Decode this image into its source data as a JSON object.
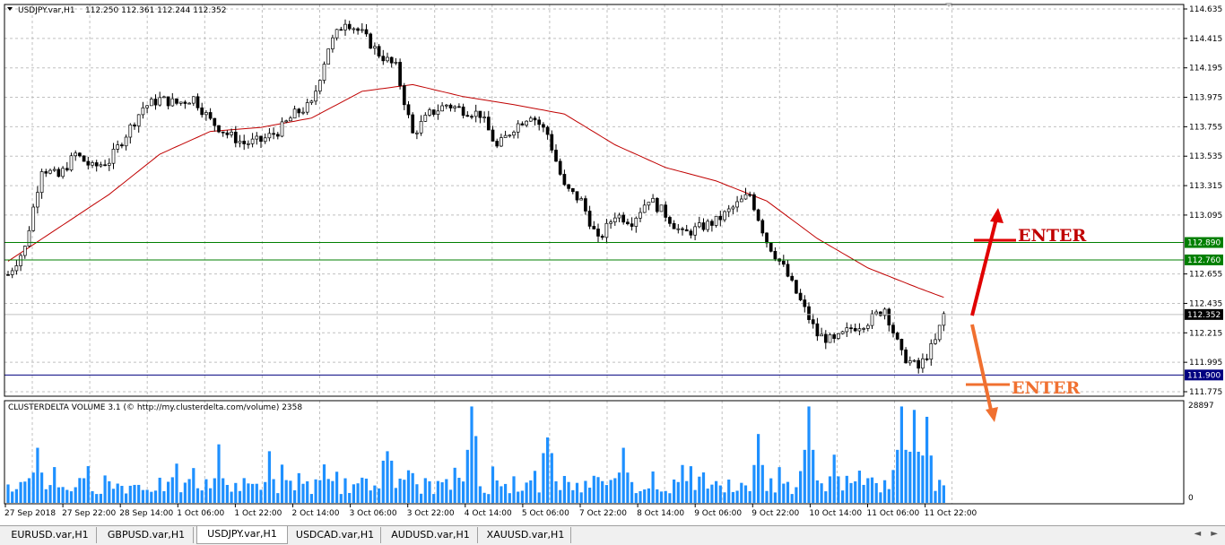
{
  "header": {
    "symbol_title": "USDJPY.var,H1",
    "ohlc": "112.250 112.361 112.244 112.352"
  },
  "indicator": {
    "title": "CLUSTERDELTA VOLUME 3.1 (© http://my.clusterdelta.com/volume) 2358",
    "max_label": "28897",
    "min_label": "0"
  },
  "price_axis": {
    "ticks": [
      "114.635",
      "114.415",
      "114.195",
      "113.975",
      "113.755",
      "113.535",
      "113.315",
      "113.095",
      "112.655",
      "112.435",
      "112.215",
      "111.995",
      "111.775"
    ]
  },
  "levels": {
    "upper": {
      "value": 112.89,
      "label": "112.890",
      "color": "#007f00"
    },
    "middle": {
      "value": 112.76,
      "label": "112.760",
      "color": "#007f00"
    },
    "current": {
      "value": 112.352,
      "label": "112.352",
      "color": "#000000"
    },
    "lower": {
      "value": 111.9,
      "label": "111.900",
      "color": "#000080"
    }
  },
  "annotations": {
    "buy_label": "ENTER",
    "buy_color": "#e00000",
    "sell_label": "ENTER",
    "sell_color": "#f07030",
    "label_color_buy": "#c00000",
    "label_color_sell": "#f07030"
  },
  "time_axis": {
    "labels": [
      "27 Sep 2018",
      "27 Sep 22:00",
      "28 Sep 14:00",
      "1 Oct 06:00",
      "1 Oct 22:00",
      "2 Oct 14:00",
      "3 Oct 06:00",
      "3 Oct 22:00",
      "4 Oct 14:00",
      "5 Oct 06:00",
      "7 Oct 22:00",
      "8 Oct 14:00",
      "9 Oct 06:00",
      "9 Oct 22:00",
      "10 Oct 14:00",
      "11 Oct 06:00",
      "11 Oct 22:00"
    ]
  },
  "tabs": [
    {
      "label": "EURUSD.var,H1",
      "active": false
    },
    {
      "label": "GBPUSD.var,H1",
      "active": false
    },
    {
      "label": "USDJPY.var,H1",
      "active": true
    },
    {
      "label": "USDCAD.var,H1",
      "active": false
    },
    {
      "label": "AUDUSD.var,H1",
      "active": false
    },
    {
      "label": "XAUUSD.var,H1",
      "active": false
    }
  ],
  "colors": {
    "candle": "#000000",
    "ma": "#c00000",
    "volume": "#1e90ff",
    "grid": "#c0c0c0"
  },
  "chart_data": {
    "type": "candlestick",
    "symbol": "USDJPY",
    "timeframe": "H1",
    "ylim": [
      111.775,
      114.635
    ],
    "key_path": [
      [
        0,
        112.65
      ],
      [
        4,
        112.85
      ],
      [
        8,
        113.45
      ],
      [
        12,
        113.38
      ],
      [
        16,
        113.55
      ],
      [
        20,
        113.45
      ],
      [
        24,
        113.5
      ],
      [
        28,
        113.7
      ],
      [
        32,
        113.9
      ],
      [
        36,
        113.96
      ],
      [
        40,
        113.93
      ],
      [
        44,
        113.97
      ],
      [
        48,
        113.8
      ],
      [
        52,
        113.7
      ],
      [
        56,
        113.63
      ],
      [
        60,
        113.65
      ],
      [
        64,
        113.72
      ],
      [
        68,
        113.85
      ],
      [
        72,
        113.92
      ],
      [
        76,
        114.35
      ],
      [
        80,
        114.55
      ],
      [
        84,
        114.45
      ],
      [
        88,
        114.3
      ],
      [
        92,
        114.2
      ],
      [
        96,
        113.7
      ],
      [
        100,
        113.85
      ],
      [
        104,
        113.92
      ],
      [
        108,
        113.88
      ],
      [
        112,
        113.85
      ],
      [
        116,
        113.6
      ],
      [
        120,
        113.75
      ],
      [
        124,
        113.85
      ],
      [
        128,
        113.7
      ],
      [
        132,
        113.3
      ],
      [
        136,
        113.2
      ],
      [
        140,
        112.9
      ],
      [
        144,
        113.1
      ],
      [
        148,
        113.05
      ],
      [
        152,
        113.22
      ],
      [
        156,
        113.1
      ],
      [
        160,
        112.95
      ],
      [
        164,
        113.0
      ],
      [
        168,
        113.05
      ],
      [
        172,
        113.15
      ],
      [
        176,
        113.25
      ],
      [
        180,
        112.9
      ],
      [
        184,
        112.7
      ],
      [
        188,
        112.45
      ],
      [
        192,
        112.2
      ],
      [
        196,
        112.15
      ],
      [
        200,
        112.25
      ],
      [
        204,
        112.3
      ],
      [
        208,
        112.4
      ],
      [
        212,
        112.05
      ],
      [
        216,
        111.95
      ],
      [
        220,
        112.15
      ],
      [
        222,
        112.352
      ]
    ],
    "moving_average": [
      [
        0,
        112.75
      ],
      [
        12,
        113.0
      ],
      [
        24,
        113.25
      ],
      [
        36,
        113.55
      ],
      [
        48,
        113.72
      ],
      [
        60,
        113.75
      ],
      [
        72,
        113.82
      ],
      [
        84,
        114.02
      ],
      [
        96,
        114.07
      ],
      [
        108,
        113.98
      ],
      [
        120,
        113.92
      ],
      [
        132,
        113.85
      ],
      [
        144,
        113.62
      ],
      [
        156,
        113.45
      ],
      [
        168,
        113.35
      ],
      [
        180,
        113.2
      ],
      [
        192,
        112.92
      ],
      [
        204,
        112.7
      ],
      [
        216,
        112.55
      ],
      [
        222,
        112.48
      ]
    ],
    "volume_max": 28897,
    "volume_peaks": [
      [
        7,
        16000
      ],
      [
        50,
        13000
      ],
      [
        62,
        11000
      ],
      [
        90,
        15000
      ],
      [
        110,
        28000
      ],
      [
        128,
        19000
      ],
      [
        146,
        16000
      ],
      [
        160,
        11000
      ],
      [
        178,
        20000
      ],
      [
        190,
        28000
      ],
      [
        196,
        14000
      ],
      [
        212,
        28000
      ],
      [
        215,
        27000
      ],
      [
        218,
        25000
      ]
    ]
  }
}
